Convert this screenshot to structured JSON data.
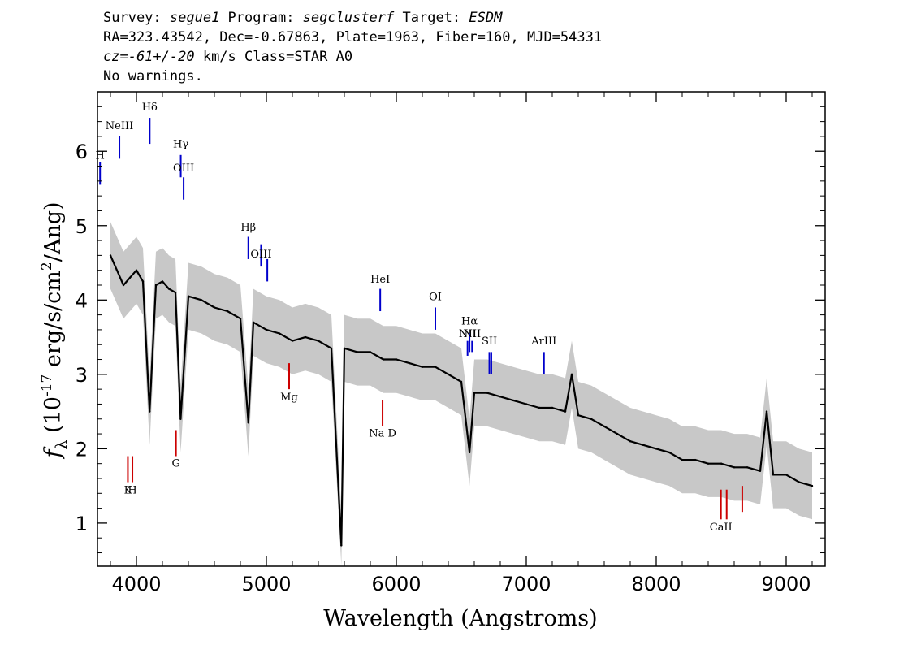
{
  "header": {
    "line1": {
      "survey_label": "Survey: ",
      "survey": "segue1",
      "program_label": " Program: ",
      "program": "segclusterf",
      "target_label": " Target: ",
      "target": "ESDM"
    },
    "line2": "RA=323.43542, Dec=-0.67863, Plate=1963, Fiber=160, MJD=54331",
    "line3": {
      "cz": "cz=-61+/-20",
      "rest": " km/s Class=STAR A0"
    },
    "line4": "No warnings."
  },
  "chart_data": {
    "type": "line",
    "xlabel": "Wavelength (Angstroms)",
    "ylabel": "f_λ (10^-17 erg/s/cm^2/Ang)",
    "xlim": [
      3700,
      9300
    ],
    "ylim": [
      0.42,
      6.8
    ],
    "xticks": [
      4000,
      5000,
      6000,
      7000,
      8000,
      9000
    ],
    "yticks": [
      1,
      2,
      3,
      4,
      5,
      6
    ],
    "grid": false,
    "legend": "none",
    "colors": {
      "flux": "#000000",
      "error_band": "#c8c8c8",
      "emission_line": "#0000cc",
      "absorption_line": "#cc0000"
    },
    "series": [
      {
        "role": "flux",
        "x": [
          3800,
          3850,
          3900,
          3950,
          4000,
          4050,
          4101,
          4150,
          4200,
          4250,
          4300,
          4340,
          4400,
          4500,
          4600,
          4700,
          4800,
          4861,
          4900,
          5000,
          5100,
          5200,
          5300,
          5400,
          5500,
          5577,
          5600,
          5700,
          5800,
          5900,
          6000,
          6100,
          6200,
          6300,
          6400,
          6500,
          6563,
          6600,
          6700,
          6800,
          6900,
          7000,
          7100,
          7200,
          7300,
          7350,
          7400,
          7500,
          7600,
          7700,
          7800,
          7900,
          8000,
          8100,
          8200,
          8300,
          8400,
          8500,
          8600,
          8700,
          8800,
          8850,
          8900,
          9000,
          9100,
          9200
        ],
        "y": [
          4.6,
          4.4,
          4.2,
          4.3,
          4.4,
          4.25,
          2.5,
          4.2,
          4.25,
          4.15,
          4.1,
          2.4,
          4.05,
          4.0,
          3.9,
          3.85,
          3.75,
          2.35,
          3.7,
          3.6,
          3.55,
          3.45,
          3.5,
          3.45,
          3.35,
          0.7,
          3.35,
          3.3,
          3.3,
          3.2,
          3.2,
          3.15,
          3.1,
          3.1,
          3.0,
          2.9,
          1.95,
          2.75,
          2.75,
          2.7,
          2.65,
          2.6,
          2.55,
          2.55,
          2.5,
          3.0,
          2.45,
          2.4,
          2.3,
          2.2,
          2.1,
          2.05,
          2.0,
          1.95,
          1.85,
          1.85,
          1.8,
          1.8,
          1.75,
          1.75,
          1.7,
          2.5,
          1.65,
          1.65,
          1.55,
          1.5
        ],
        "uncertainty": 0.45
      }
    ],
    "annotations": [
      {
        "label": "H",
        "x": 3720,
        "y_from": 5.55,
        "y_to": 5.85,
        "kind": "emission",
        "label_y": 5.9
      },
      {
        "label": "NeIII",
        "x": 3869,
        "y_from": 5.9,
        "y_to": 6.2,
        "kind": "emission",
        "label_y": 6.3
      },
      {
        "label": "Hδ",
        "x": 4102,
        "y_from": 6.1,
        "y_to": 6.45,
        "kind": "emission",
        "label_y": 6.55
      },
      {
        "label": "Hγ",
        "x": 4341,
        "y_from": 5.65,
        "y_to": 5.95,
        "kind": "emission",
        "label_y": 6.05
      },
      {
        "label": "OIII",
        "x": 4363,
        "y_from": 5.35,
        "y_to": 5.65,
        "kind": "emission",
        "label_y": 5.73
      },
      {
        "label": "Hβ",
        "x": 4861,
        "y_from": 4.55,
        "y_to": 4.85,
        "kind": "emission",
        "label_y": 4.93
      },
      {
        "label": "OIII",
        "x": 4959,
        "y_from": 4.45,
        "y_to": 4.75,
        "kind": "emission",
        "label_y": 4.57
      },
      {
        "label": "",
        "x": 5007,
        "y_from": 4.25,
        "y_to": 4.55,
        "kind": "emission",
        "label_y": 4.6
      },
      {
        "label": "HeI",
        "x": 5876,
        "y_from": 3.85,
        "y_to": 4.15,
        "kind": "emission",
        "label_y": 4.23
      },
      {
        "label": "OI",
        "x": 6300,
        "y_from": 3.6,
        "y_to": 3.9,
        "kind": "emission",
        "label_y": 4.0
      },
      {
        "label": "NII",
        "x": 6548,
        "y_from": 3.25,
        "y_to": 3.45,
        "kind": "emission",
        "label_y": 3.5
      },
      {
        "label": "Hα",
        "x": 6563,
        "y_from": 3.3,
        "y_to": 3.55,
        "kind": "emission",
        "label_y": 3.67
      },
      {
        "label": "NII",
        "x": 6583,
        "y_from": 3.3,
        "y_to": 3.45,
        "kind": "emission",
        "label_y": 3.5
      },
      {
        "label": "SII",
        "x": 6716,
        "y_from": 3.0,
        "y_to": 3.3,
        "kind": "emission",
        "label_y": 3.4
      },
      {
        "label": "",
        "x": 6731,
        "y_from": 3.0,
        "y_to": 3.3,
        "kind": "emission",
        "label_y": 3.4
      },
      {
        "label": "ArIII",
        "x": 7136,
        "y_from": 3.0,
        "y_to": 3.3,
        "kind": "emission",
        "label_y": 3.4
      },
      {
        "label": "K",
        "x": 3934,
        "y_from": 1.55,
        "y_to": 1.9,
        "kind": "absorption",
        "label_y": 1.4
      },
      {
        "label": "H",
        "x": 3969,
        "y_from": 1.55,
        "y_to": 1.9,
        "kind": "absorption",
        "label_y": 1.4
      },
      {
        "label": "G",
        "x": 4304,
        "y_from": 1.9,
        "y_to": 2.25,
        "kind": "absorption",
        "label_y": 1.76
      },
      {
        "label": "Mg",
        "x": 5175,
        "y_from": 2.8,
        "y_to": 3.15,
        "kind": "absorption",
        "label_y": 2.65
      },
      {
        "label": "Na D",
        "x": 5894,
        "y_from": 2.3,
        "y_to": 2.65,
        "kind": "absorption",
        "label_y": 2.16
      },
      {
        "label": "CaII",
        "x": 8498,
        "y_from": 1.05,
        "y_to": 1.45,
        "kind": "absorption",
        "label_y": 0.9
      },
      {
        "label": "",
        "x": 8542,
        "y_from": 1.05,
        "y_to": 1.45,
        "kind": "absorption",
        "label_y": 0.9
      },
      {
        "label": "",
        "x": 8662,
        "y_from": 1.15,
        "y_to": 1.5,
        "kind": "absorption",
        "label_y": 0.9
      }
    ]
  }
}
